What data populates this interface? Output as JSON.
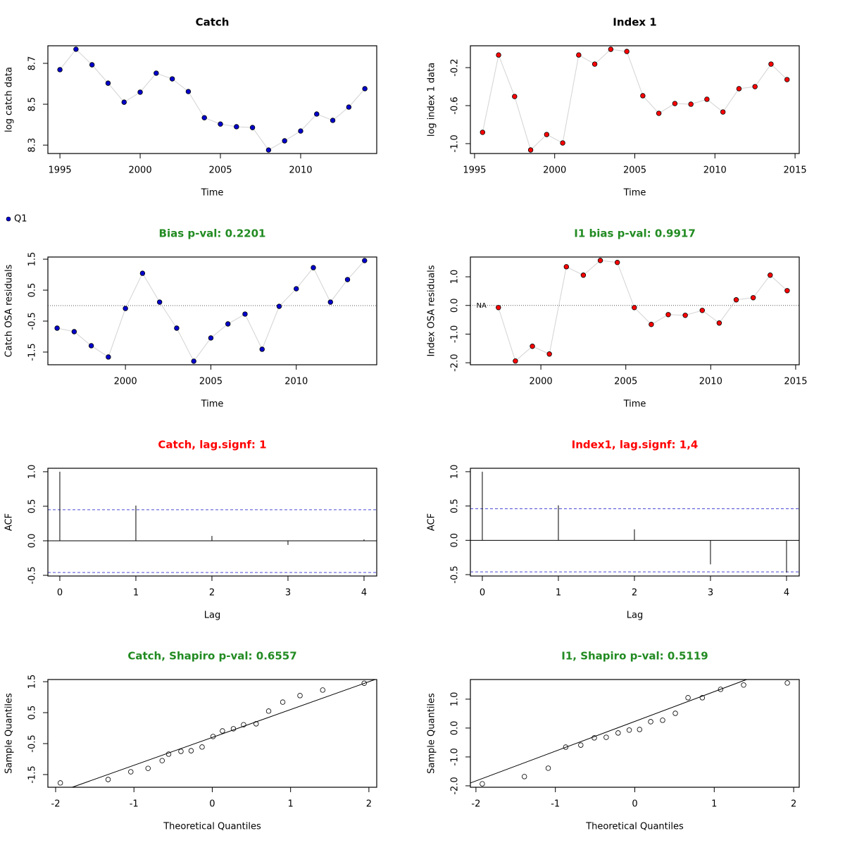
{
  "chart_data": [
    {
      "type": "line",
      "title": "Catch",
      "title_color": "#000000",
      "xlabel": "Time",
      "ylabel": "log catch data",
      "xlim": [
        1994.25,
        2014.74
      ],
      "ylim": [
        8.259,
        8.786
      ],
      "xticks": [
        1995,
        2000,
        2005,
        2010
      ],
      "yticks": [
        8.3,
        8.5,
        8.7
      ],
      "line_color": "#d3d3d3",
      "series": [
        {
          "color": "#0000cd",
          "x": [
            1995,
            1996,
            1997,
            1998,
            1999,
            2000,
            2001,
            2002,
            2003,
            2004,
            2005,
            2006,
            2007,
            2008,
            2009,
            2010,
            2011,
            2012,
            2013,
            2014
          ],
          "values": [
            8.669,
            8.769,
            8.693,
            8.603,
            8.51,
            8.559,
            8.652,
            8.624,
            8.562,
            8.434,
            8.403,
            8.39,
            8.386,
            8.276,
            8.321,
            8.369,
            8.452,
            8.421,
            8.486,
            8.576
          ]
        }
      ]
    },
    {
      "type": "line",
      "title": "Index 1",
      "title_color": "#000000",
      "xlabel": "Time",
      "ylabel": "log index 1 data",
      "xlim": [
        1994.74,
        2015.26
      ],
      "ylim": [
        -1.104,
        0.03
      ],
      "xticks": [
        1995,
        2000,
        2005,
        2010,
        2015
      ],
      "yticks": [
        {
          "value": -1,
          "label": "-1.0"
        },
        -0.6,
        -0.2
      ],
      "line_color": "#d3d3d3",
      "series": [
        {
          "color": "#ff0000",
          "x": [
            1995.5,
            1996.5,
            1997.5,
            1998.5,
            1999.5,
            2000.5,
            2001.5,
            2002.5,
            2003.5,
            2004.5,
            2005.5,
            2006.5,
            2007.5,
            2008.5,
            2009.5,
            2010.5,
            2011.5,
            2012.5,
            2013.5,
            2014.5
          ],
          "values": [
            -0.881,
            -0.067,
            -0.504,
            -1.067,
            -0.904,
            -0.993,
            -0.067,
            -0.163,
            -0.007,
            -0.03,
            -0.496,
            -0.681,
            -0.578,
            -0.585,
            -0.533,
            -0.667,
            -0.422,
            -0.4,
            -0.163,
            -0.326
          ]
        }
      ]
    },
    {
      "type": "line",
      "title": "Bias p-val: 0.2201",
      "title_color": "#228b22",
      "xlabel": "Time",
      "ylabel": "Catch OSA residuals",
      "xlim": [
        1995.46,
        2014.71
      ],
      "ylim": [
        -1.91,
        1.57
      ],
      "xticks": [
        2000,
        2005,
        2010
      ],
      "yticks": [
        -1.5,
        -0.5,
        0.5,
        1.5
      ],
      "line_color": "#d3d3d3",
      "hline": 0,
      "series": [
        {
          "name": "Q1",
          "color": "#0000cd",
          "x": [
            1996,
            1997,
            1998,
            1999,
            2000,
            2001,
            2002,
            2003,
            2004,
            2005,
            2006,
            2007,
            2008,
            2009,
            2010,
            2011,
            2012,
            2013,
            2014
          ],
          "values": [
            -0.727,
            -0.841,
            -1.295,
            -1.659,
            -0.091,
            1.045,
            0.114,
            -0.727,
            -1.795,
            -1.045,
            -0.591,
            -0.273,
            -1.409,
            -0.023,
            0.545,
            1.227,
            0.114,
            0.841,
            1.455
          ]
        }
      ]
    },
    {
      "type": "line",
      "title": "I1 bias p-val: 0.9917",
      "title_color": "#228b22",
      "xlabel": "Time",
      "ylabel": "Index OSA residuals",
      "xlim": [
        1995.85,
        2015.21
      ],
      "ylim": [
        -2.07,
        1.69
      ],
      "xticks": [
        2000,
        2005,
        2010,
        2015
      ],
      "yticks": [
        {
          "value": -2,
          "label": "-2.0"
        },
        {
          "value": -1,
          "label": "-1.0"
        },
        {
          "value": 0,
          "label": "0.0"
        },
        {
          "value": 1,
          "label": "1.0"
        }
      ],
      "line_color": "#d3d3d3",
      "hline": 0,
      "annotations": [
        {
          "text": "NA",
          "x": 1996.5,
          "y": 0
        }
      ],
      "series": [
        {
          "color": "#ff0000",
          "x": [
            1996.5,
            1997.5,
            1998.5,
            1999.5,
            2000.5,
            2001.5,
            2002.5,
            2003.5,
            2004.5,
            2005.5,
            2006.5,
            2007.5,
            2008.5,
            2009.5,
            2010.5,
            2011.5,
            2012.5,
            2013.5,
            2014.5
          ],
          "values": [
            null,
            -0.074,
            -1.94,
            -1.425,
            -1.695,
            1.35,
            1.057,
            1.57,
            1.5,
            -0.074,
            -0.663,
            -0.32,
            -0.344,
            -0.172,
            -0.614,
            0.197,
            0.27,
            1.057,
            0.516
          ]
        }
      ]
    },
    {
      "type": "acf",
      "title": "Catch, lag.signf: 1",
      "title_color": "#ff0000",
      "xlabel": "Lag",
      "ylabel": "ACF",
      "xlim": [
        -0.157,
        4.167
      ],
      "ylim": [
        -0.51,
        1.05
      ],
      "xticks": [
        0,
        1,
        2,
        3,
        4
      ],
      "yticks": [
        -0.5,
        {
          "value": 0,
          "label": "0.0"
        },
        0.5,
        {
          "value": 1,
          "label": "1.0"
        }
      ],
      "conf_lines": [
        0.45,
        -0.459
      ],
      "conf_color": "#4b4bd6",
      "series": [
        {
          "color": "#000000",
          "x": [
            0,
            1,
            2,
            3,
            4
          ],
          "values": [
            1,
            0.51,
            0.07,
            -0.06,
            0.02
          ]
        }
      ]
    },
    {
      "type": "acf",
      "title": "Index1, lag.signf: 1,4",
      "title_color": "#ff0000",
      "xlabel": "Lag",
      "ylabel": "ACF",
      "xlim": [
        -0.157,
        4.167
      ],
      "ylim": [
        -0.52,
        1.05
      ],
      "xticks": [
        0,
        1,
        2,
        3,
        4
      ],
      "yticks": [
        -0.5,
        {
          "value": 0,
          "label": "0.0"
        },
        0.5,
        {
          "value": 1,
          "label": "1.0"
        }
      ],
      "conf_lines": [
        0.46,
        -0.46
      ],
      "conf_color": "#4b4bd6",
      "series": [
        {
          "color": "#000000",
          "x": [
            0,
            1,
            2,
            3,
            4
          ],
          "values": [
            1,
            0.51,
            0.16,
            -0.35,
            -0.47
          ]
        }
      ]
    },
    {
      "type": "scatter",
      "title": "Catch, Shapiro p-val: 0.6557",
      "title_color": "#228b22",
      "xlabel": "Theoretical Quantiles",
      "ylabel": "Sample Quantiles",
      "xlim": [
        -2.099,
        2.1
      ],
      "ylim": [
        -1.91,
        1.57
      ],
      "xticks": [
        -2,
        -1,
        0,
        1,
        2
      ],
      "yticks": [
        -1.5,
        -0.5,
        0.5,
        1.5
      ],
      "qq_line": {
        "intercept": -0.3,
        "slope": 0.9
      },
      "series": [
        {
          "color": "#000000",
          "x": [
            -1.94,
            -1.33,
            -1.04,
            -0.82,
            -0.64,
            -0.557,
            -0.4,
            -0.27,
            -0.13,
            0.01,
            0.13,
            0.27,
            0.4,
            0.56,
            0.72,
            0.9,
            1.12,
            1.41,
            1.94
          ],
          "values": [
            -1.77,
            -1.66,
            -1.41,
            -1.3,
            -1.05,
            -0.84,
            -0.75,
            -0.73,
            -0.61,
            -0.27,
            -0.09,
            -0.02,
            0.11,
            0.14,
            0.55,
            0.84,
            1.05,
            1.23,
            1.45
          ]
        }
      ]
    },
    {
      "type": "scatter",
      "title": "I1, Shapiro p-val: 0.5119",
      "title_color": "#228b22",
      "xlabel": "Theoretical Quantiles",
      "ylabel": "Sample Quantiles",
      "xlim": [
        -2.07,
        2.07
      ],
      "ylim": [
        -2.05,
        1.68
      ],
      "xticks": [
        -2,
        -1,
        0,
        1,
        2
      ],
      "yticks": [
        {
          "value": -2,
          "label": "-2.0"
        },
        {
          "value": -1,
          "label": "-1.0"
        },
        {
          "value": 0,
          "label": "0.0"
        },
        {
          "value": 1,
          "label": "1.0"
        }
      ],
      "qq_line": {
        "intercept": 0.23,
        "slope": 1.03
      },
      "series": [
        {
          "color": "#000000",
          "x": [
            -1.92,
            -1.39,
            -1.09,
            -0.87,
            -0.68,
            -0.51,
            -0.36,
            -0.21,
            -0.07,
            0.06,
            0.2,
            0.35,
            0.51,
            0.67,
            0.85,
            1.08,
            1.37,
            1.92
          ],
          "values": [
            -1.93,
            -1.68,
            -1.39,
            -0.66,
            -0.59,
            -0.34,
            -0.32,
            -0.17,
            -0.07,
            -0.05,
            0.22,
            0.27,
            0.51,
            1.05,
            1.05,
            1.34,
            1.49,
            1.56
          ]
        }
      ]
    }
  ]
}
